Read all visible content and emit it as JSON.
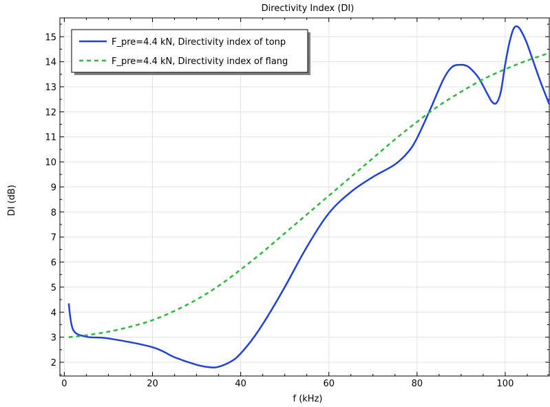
{
  "chart_data": {
    "type": "line",
    "title": "Directivity Index (DI)",
    "xlabel": "f (kHz)",
    "ylabel": "DI (dB)",
    "xlim": [
      -1,
      110
    ],
    "ylim": [
      1.45,
      15.75
    ],
    "xticks": [
      0,
      20,
      40,
      60,
      80,
      100
    ],
    "yticks": [
      2,
      3,
      4,
      5,
      6,
      7,
      8,
      9,
      10,
      11,
      12,
      13,
      14,
      15
    ],
    "grid": true,
    "legend_position": "top-left",
    "series": [
      {
        "name": "F_pre=4.4 kN, Directivity index of tonp",
        "color": "#1f3fe0",
        "style": "solid",
        "x": [
          1,
          2,
          5,
          10,
          20,
          25,
          30,
          33,
          35,
          38,
          40,
          43,
          46,
          50,
          55,
          60,
          65,
          70,
          75,
          78,
          80,
          83,
          86,
          88,
          90,
          91,
          92,
          94,
          96,
          97,
          98,
          99,
          100,
          101,
          102,
          103,
          104,
          105,
          106,
          108,
          110
        ],
        "y": [
          4.35,
          3.3,
          3.02,
          2.95,
          2.6,
          2.2,
          1.9,
          1.8,
          1.82,
          2.05,
          2.35,
          3.0,
          3.8,
          5.0,
          6.6,
          7.95,
          8.8,
          9.4,
          9.9,
          10.4,
          10.95,
          12.1,
          13.3,
          13.8,
          13.88,
          13.85,
          13.75,
          13.35,
          12.7,
          12.4,
          12.35,
          12.8,
          13.9,
          14.8,
          15.35,
          15.38,
          15.1,
          14.7,
          14.2,
          13.2,
          12.3
        ]
      },
      {
        "name": "F_pre=4.4 kN, Directivity index of flang",
        "color": "#2db83d",
        "style": "dashed",
        "x": [
          1,
          5,
          10,
          15,
          20,
          25,
          30,
          35,
          40,
          45,
          50,
          55,
          60,
          65,
          70,
          75,
          80,
          85,
          90,
          95,
          100,
          105,
          110
        ],
        "y": [
          3.0,
          3.08,
          3.22,
          3.42,
          3.68,
          4.05,
          4.5,
          5.05,
          5.7,
          6.4,
          7.15,
          7.9,
          8.65,
          9.4,
          10.15,
          10.9,
          11.6,
          12.25,
          12.8,
          13.3,
          13.7,
          14.05,
          14.35
        ]
      }
    ]
  }
}
